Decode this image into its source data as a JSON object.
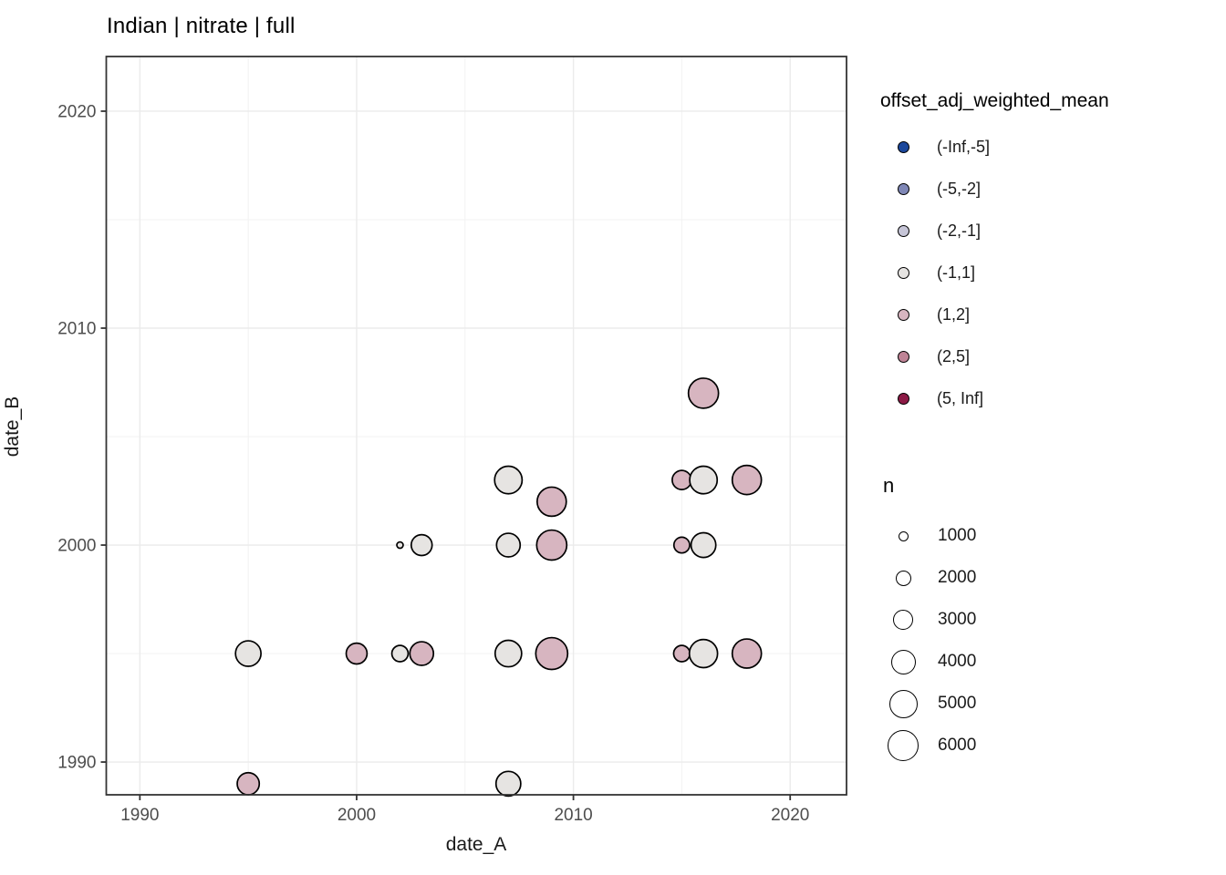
{
  "title": "Indian | nitrate | full",
  "axes": {
    "x": {
      "label": "date_A",
      "ticks": [
        1990,
        2000,
        2010,
        2020
      ],
      "minor": [
        1995,
        2005,
        2015
      ],
      "range": [
        1988.45,
        2022.6
      ]
    },
    "y": {
      "label": "date_B",
      "ticks": [
        1990,
        2000,
        2010,
        2020
      ],
      "minor": [
        1995,
        2005,
        2015
      ],
      "range": [
        1988.49,
        2022.52
      ]
    }
  },
  "legend_color": {
    "title": "offset_adj_weighted_mean",
    "items": [
      {
        "label": "(-Inf,-5]",
        "color": "#1b479b"
      },
      {
        "label": "(-5,-2]",
        "color": "#7f87b6"
      },
      {
        "label": "(-2,-1]",
        "color": "#c6c5d7"
      },
      {
        "label": "(-1,1]",
        "color": "#e6e4e2"
      },
      {
        "label": "(1,2]",
        "color": "#d7b5c0"
      },
      {
        "label": "(2,5]",
        "color": "#bf8496"
      },
      {
        "label": "(5, Inf]",
        "color": "#8c1a45"
      }
    ]
  },
  "legend_size": {
    "title": "n",
    "items": [
      {
        "label": "1000",
        "n": 1000
      },
      {
        "label": "2000",
        "n": 2000
      },
      {
        "label": "3000",
        "n": 3000
      },
      {
        "label": "4000",
        "n": 4000
      },
      {
        "label": "5000",
        "n": 5000
      },
      {
        "label": "6000",
        "n": 6000
      }
    ]
  },
  "chart_data": {
    "type": "scatter",
    "title": "Indian | nitrate | full",
    "xlabel": "date_A",
    "ylabel": "date_B",
    "xlim": [
      1988.45,
      2022.6
    ],
    "ylim": [
      1988.49,
      2022.52
    ],
    "grid": "major_and_minor",
    "legend_position": "right",
    "color_variable": "offset_adj_weighted_mean",
    "size_variable": "n",
    "size_scale": {
      "a": -2.76,
      "b": 0.255
    },
    "points": [
      {
        "date_A": 1995,
        "date_B": 1989,
        "offset_bin": "(1,2]",
        "n": 3400
      },
      {
        "date_A": 2007,
        "date_B": 1989,
        "offset_bin": "(-1,1]",
        "n": 4100
      },
      {
        "date_A": 1995,
        "date_B": 1995,
        "offset_bin": "(-1,1]",
        "n": 4300
      },
      {
        "date_A": 2000,
        "date_B": 1995,
        "offset_bin": "(1,2]",
        "n": 3100
      },
      {
        "date_A": 2002,
        "date_B": 1995,
        "offset_bin": "(-1,1]",
        "n": 2100
      },
      {
        "date_A": 2003,
        "date_B": 1995,
        "offset_bin": "(1,2]",
        "n": 3800
      },
      {
        "date_A": 2007,
        "date_B": 1995,
        "offset_bin": "(-1,1]",
        "n": 4600
      },
      {
        "date_A": 2009,
        "date_B": 1995,
        "offset_bin": "(1,2]",
        "n": 6300
      },
      {
        "date_A": 2015,
        "date_B": 1995,
        "offset_bin": "(1,2]",
        "n": 2100
      },
      {
        "date_A": 2016,
        "date_B": 1995,
        "offset_bin": "(-1,1]",
        "n": 5100
      },
      {
        "date_A": 2018,
        "date_B": 1995,
        "offset_bin": "(1,2]",
        "n": 5400
      },
      {
        "date_A": 2002,
        "date_B": 2000,
        "offset_bin": "(-1,1]",
        "n": 600
      },
      {
        "date_A": 2003,
        "date_B": 2000,
        "offset_bin": "(-1,1]",
        "n": 3100
      },
      {
        "date_A": 2007,
        "date_B": 2000,
        "offset_bin": "(-1,1]",
        "n": 3800
      },
      {
        "date_A": 2009,
        "date_B": 2000,
        "offset_bin": "(1,2]",
        "n": 5700
      },
      {
        "date_A": 2015,
        "date_B": 2000,
        "offset_bin": "(1,2]",
        "n": 2000
      },
      {
        "date_A": 2016,
        "date_B": 2000,
        "offset_bin": "(-1,1]",
        "n": 4100
      },
      {
        "date_A": 2009,
        "date_B": 2002,
        "offset_bin": "(1,2]",
        "n": 5400
      },
      {
        "date_A": 2007,
        "date_B": 2003,
        "offset_bin": "(-1,1]",
        "n": 4900
      },
      {
        "date_A": 2015,
        "date_B": 2003,
        "offset_bin": "(1,2]",
        "n": 2700
      },
      {
        "date_A": 2016,
        "date_B": 2003,
        "offset_bin": "(-1,1]",
        "n": 4900
      },
      {
        "date_A": 2018,
        "date_B": 2003,
        "offset_bin": "(1,2]",
        "n": 5400
      },
      {
        "date_A": 2016,
        "date_B": 2007,
        "offset_bin": "(1,2]",
        "n": 5700
      }
    ]
  },
  "colors": {
    "background": "#ffffff",
    "panel_border": "#343434",
    "grid_major": "#ebebeb",
    "grid_minor": "#f3f3f3",
    "tick_label": "#4d4d4d",
    "tick_mark": "#333333",
    "point_stroke": "#000000",
    "title_text": "#000000"
  }
}
